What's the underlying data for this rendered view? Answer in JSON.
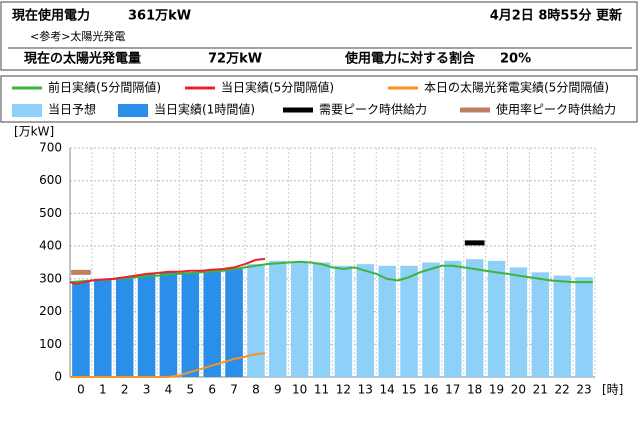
{
  "header": {
    "title": "現在使用電力",
    "value": "361万kW",
    "updated": "4月2日 8時55分 更新",
    "note": "<参考>太陽光発電",
    "solar_label": "現在の太陽光発電量",
    "solar_value": "72万kW",
    "ratio_label": "使用電力に対する割合",
    "ratio_value": "20%"
  },
  "chart_data": {
    "type": "bar",
    "y_label": "[万kW]",
    "x_label": "[時]",
    "categories": [
      "0",
      "1",
      "2",
      "3",
      "4",
      "5",
      "6",
      "7",
      "8",
      "9",
      "10",
      "11",
      "12",
      "13",
      "14",
      "15",
      "16",
      "17",
      "18",
      "19",
      "20",
      "21",
      "22",
      "23"
    ],
    "ylim": [
      0,
      700
    ],
    "yticks": [
      0,
      100,
      200,
      300,
      400,
      500,
      600,
      700
    ],
    "grid": true,
    "series": [
      {
        "name": "前日実績(5分間隔値)",
        "kind": "line",
        "color": "#3cb43c",
        "x": [
          0,
          1,
          2,
          3,
          4,
          5,
          6,
          7,
          8,
          9,
          10,
          10.5,
          11,
          11.5,
          12,
          12.5,
          13,
          13.5,
          14,
          14.5,
          15,
          15.5,
          16,
          16.5,
          17,
          17.5,
          18,
          18.5,
          19,
          20,
          21,
          22,
          23,
          23.9
        ],
        "values": [
          290,
          295,
          300,
          305,
          310,
          315,
          320,
          325,
          335,
          345,
          350,
          352,
          350,
          345,
          335,
          330,
          335,
          325,
          315,
          300,
          295,
          305,
          320,
          330,
          340,
          340,
          335,
          330,
          325,
          315,
          305,
          295,
          290,
          290
        ]
      },
      {
        "name": "当日実績(5分間隔値)",
        "kind": "line",
        "color": "#e8232d",
        "x": [
          0,
          0.25,
          0.5,
          1,
          1.5,
          2,
          2.5,
          3,
          3.5,
          4,
          4.5,
          5,
          5.5,
          6,
          6.5,
          7,
          7.5,
          8,
          8.5,
          8.92
        ],
        "values": [
          290,
          285,
          288,
          295,
          298,
          300,
          305,
          310,
          315,
          318,
          322,
          322,
          325,
          325,
          328,
          330,
          335,
          345,
          358,
          361
        ]
      },
      {
        "name": "本日の太陽光発電実績(5分間隔値)",
        "kind": "line",
        "color": "#f7931e",
        "x": [
          0,
          1,
          2,
          3,
          4,
          4.5,
          5,
          5.5,
          6,
          6.5,
          7,
          7.5,
          8,
          8.5,
          8.92
        ],
        "values": [
          0,
          0,
          0,
          0,
          0,
          0,
          5,
          15,
          25,
          35,
          45,
          55,
          62,
          70,
          72
        ]
      },
      {
        "name": "当日予想",
        "kind": "bar",
        "color": "#8ed0f7",
        "values": [
          290,
          290,
          295,
          300,
          300,
          305,
          310,
          325,
          345,
          355,
          350,
          350,
          340,
          345,
          340,
          340,
          350,
          355,
          360,
          355,
          335,
          320,
          310,
          305
        ]
      },
      {
        "name": "当日実績(1時間値)",
        "kind": "bar",
        "color": "#2b8ee8",
        "values": [
          290,
          300,
          305,
          315,
          320,
          320,
          325,
          330,
          null,
          null,
          null,
          null,
          null,
          null,
          null,
          null,
          null,
          null,
          null,
          null,
          null,
          null,
          null,
          null
        ]
      },
      {
        "name": "需要ピーク時供給力",
        "kind": "marker",
        "color": "#000000",
        "x": [
          18
        ],
        "values": [
          410
        ]
      },
      {
        "name": "使用率ピーク時供給力",
        "kind": "marker",
        "color": "#c08060",
        "x": [
          0
        ],
        "values": [
          320
        ]
      }
    ]
  }
}
